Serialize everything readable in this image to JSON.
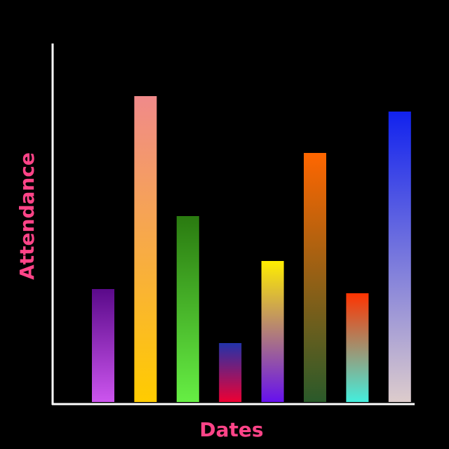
{
  "chart_data": {
    "type": "bar",
    "x_label": "Dates",
    "y_label": "Attendance",
    "categories": [
      null,
      null,
      null,
      null,
      null,
      null,
      null,
      null
    ],
    "values": [
      161,
      436,
      265,
      84,
      201,
      355,
      155,
      414
    ],
    "colors": [
      [
        "#5a0a8a",
        "#cc55ee"
      ],
      [
        "#f08a8a",
        "#ffcc00"
      ],
      [
        "#2a7a10",
        "#66ee44"
      ],
      [
        "#2233aa",
        "#ee0033"
      ],
      [
        "#ffee00",
        "#6611ee"
      ],
      [
        "#ff6600",
        "#2a5a2a"
      ],
      [
        "#ff3300",
        "#44eedd"
      ],
      [
        "#1122ee",
        "#ddcccc"
      ]
    ],
    "ylim": [
      0,
      511
    ]
  }
}
